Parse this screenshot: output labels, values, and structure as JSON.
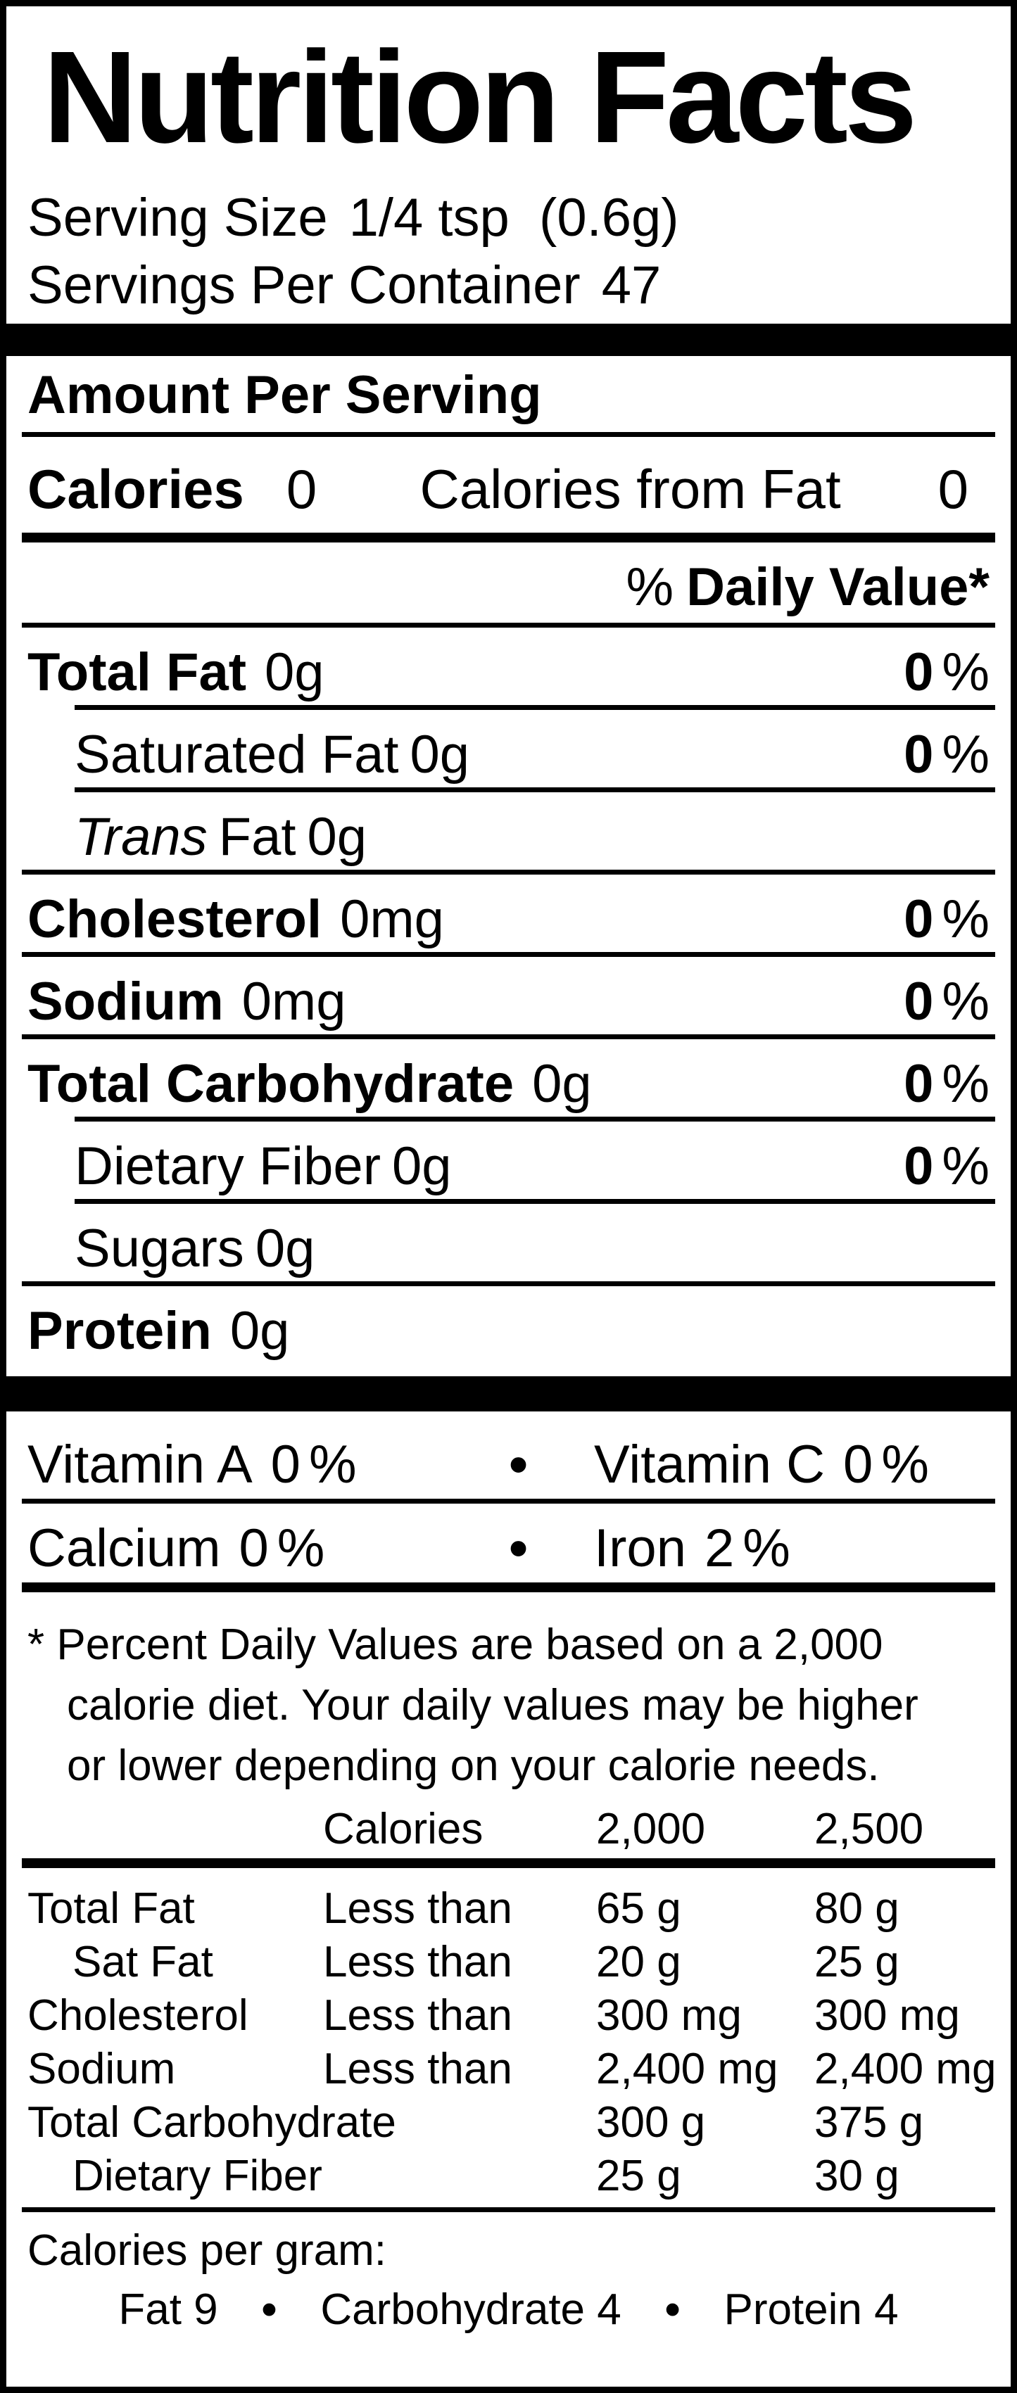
{
  "colors": {
    "ink": "#000000",
    "paper": "#ffffff"
  },
  "label": {
    "title": "Nutrition Facts",
    "serving": {
      "size_label": "Serving Size",
      "size_value": "1/4 tsp  (0.6g)",
      "container_label": "Servings Per Container",
      "container_value": "47"
    },
    "amount_per_serving": "Amount Per Serving",
    "calories_row": {
      "label": "Calories",
      "value": "0",
      "from_fat_label": "Calories from Fat",
      "from_fat_value": "0"
    },
    "daily_value_heading": {
      "percent": "%",
      "label": "Daily Value*"
    },
    "percent_sign": "%",
    "bullet": "•",
    "nutrients": [
      {
        "name": "Total Fat",
        "amount": "0g",
        "dv": "0"
      },
      {
        "name": "Saturated Fat",
        "amount": "0g",
        "dv": "0"
      },
      {
        "name_italic": "Trans",
        "name": "Fat",
        "amount": "0g"
      },
      {
        "name": "Cholesterol",
        "amount": "0mg",
        "dv": "0"
      },
      {
        "name": "Sodium",
        "amount": "0mg",
        "dv": "0"
      },
      {
        "name": "Total Carbohydrate",
        "amount": "0g",
        "dv": "0"
      },
      {
        "name": "Dietary Fiber",
        "amount": "0g",
        "dv": "0"
      },
      {
        "name": "Sugars",
        "amount": "0g"
      },
      {
        "name": "Protein",
        "amount": "0g"
      }
    ],
    "vitamins": [
      {
        "left_name": "Vitamin A",
        "left_value": "0",
        "right_name": "Vitamin C",
        "right_value": "0"
      },
      {
        "left_name": "Calcium",
        "left_value": "0",
        "right_name": "Iron",
        "right_value": "2"
      }
    ],
    "footnote_lines": [
      "* Percent Daily Values are based on a 2,000",
      "calorie diet. Your daily values may be higher",
      "or lower depending on your calorie needs."
    ],
    "dv_table": {
      "header": {
        "calories": "Calories",
        "c2000": "2,000",
        "c2500": "2,500"
      },
      "rows": [
        {
          "name": "Total Fat",
          "qual": "Less than",
          "v2000": "65 g",
          "v2500": "80 g"
        },
        {
          "name": "Sat Fat",
          "qual": "Less than",
          "v2000": "20 g",
          "v2500": "25 g"
        },
        {
          "name": "Cholesterol",
          "qual": "Less than",
          "v2000": "300 mg",
          "v2500": "300 mg"
        },
        {
          "name": "Sodium",
          "qual": "Less than",
          "v2000": "2,400 mg",
          "v2500": "2,400 mg"
        },
        {
          "name": "Total Carbohydrate",
          "qual": "",
          "v2000": "300 g",
          "v2500": "375 g"
        },
        {
          "name": "Dietary Fiber",
          "qual": "",
          "v2000": "25 g",
          "v2500": "30 g"
        }
      ]
    },
    "calories_per_gram": {
      "label": "Calories per gram:",
      "items": [
        "Fat 9",
        "Carbohydrate 4",
        "Protein 4"
      ]
    }
  }
}
